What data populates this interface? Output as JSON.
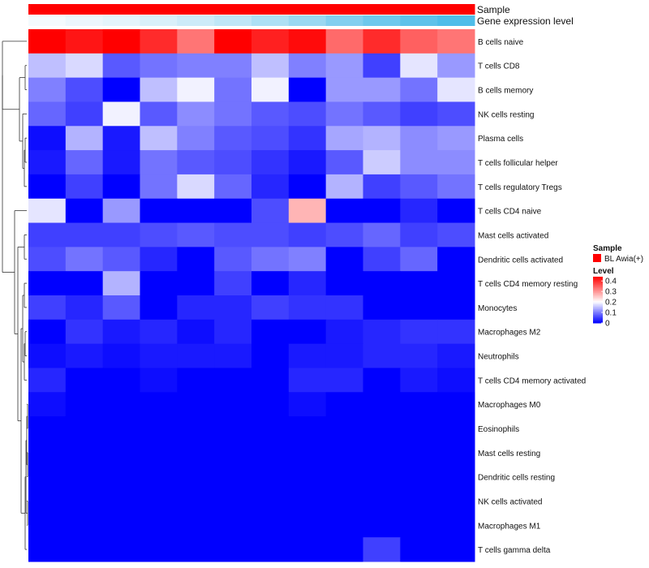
{
  "chart_data": {
    "type": "heatmap",
    "row_labels": [
      "B cells naive",
      "T cells CD8",
      "B cells memory",
      "NK cells resting",
      "Plasma cells",
      "T cells follicular helper",
      "T cells regulatory  Tregs",
      "T cells CD4 naive",
      "Mast cells activated",
      "Dendritic cells activated",
      "T cells CD4 memory resting",
      "Monocytes",
      "Macrophages M2",
      "Neutrophils",
      "T cells CD4 memory activated",
      "Macrophages M0",
      "Eosinophils",
      "Mast cells resting",
      "Dendritic cells resting",
      "NK cells activated",
      "Macrophages M1",
      "T cells gamma delta"
    ],
    "values": [
      [
        0.44,
        0.42,
        0.44,
        0.4,
        0.33,
        0.44,
        0.41,
        0.43,
        0.34,
        0.4,
        0.35,
        0.33
      ],
      [
        0.15,
        0.17,
        0.07,
        0.09,
        0.1,
        0.1,
        0.15,
        0.1,
        0.12,
        0.05,
        0.18,
        0.12
      ],
      [
        0.1,
        0.06,
        0.0,
        0.15,
        0.19,
        0.09,
        0.19,
        0.0,
        0.12,
        0.12,
        0.09,
        0.18
      ],
      [
        0.08,
        0.05,
        0.19,
        0.07,
        0.11,
        0.09,
        0.07,
        0.06,
        0.09,
        0.07,
        0.05,
        0.06
      ],
      [
        0.01,
        0.14,
        0.02,
        0.15,
        0.1,
        0.07,
        0.06,
        0.04,
        0.13,
        0.14,
        0.11,
        0.12
      ],
      [
        0.02,
        0.08,
        0.02,
        0.09,
        0.07,
        0.06,
        0.04,
        0.02,
        0.07,
        0.16,
        0.11,
        0.11
      ],
      [
        0.0,
        0.05,
        0.0,
        0.09,
        0.17,
        0.08,
        0.03,
        0.0,
        0.14,
        0.05,
        0.07,
        0.09
      ],
      [
        0.18,
        0.0,
        0.12,
        0.0,
        0.0,
        0.0,
        0.06,
        0.27,
        0.0,
        0.0,
        0.03,
        0.0
      ],
      [
        0.05,
        0.05,
        0.05,
        0.06,
        0.07,
        0.06,
        0.06,
        0.05,
        0.06,
        0.08,
        0.05,
        0.06
      ],
      [
        0.06,
        0.09,
        0.07,
        0.03,
        0.0,
        0.07,
        0.09,
        0.1,
        0.0,
        0.05,
        0.08,
        0.0
      ],
      [
        0.0,
        0.0,
        0.14,
        0.0,
        0.0,
        0.05,
        0.0,
        0.03,
        0.0,
        0.0,
        0.0,
        0.0
      ],
      [
        0.05,
        0.03,
        0.07,
        0.0,
        0.03,
        0.03,
        0.05,
        0.04,
        0.04,
        0.0,
        0.0,
        0.0
      ],
      [
        0.0,
        0.04,
        0.02,
        0.03,
        0.01,
        0.03,
        0.0,
        0.0,
        0.02,
        0.03,
        0.04,
        0.04
      ],
      [
        0.01,
        0.02,
        0.01,
        0.02,
        0.02,
        0.02,
        0.0,
        0.02,
        0.02,
        0.03,
        0.03,
        0.02
      ],
      [
        0.03,
        0.0,
        0.0,
        0.01,
        0.0,
        0.0,
        0.0,
        0.03,
        0.03,
        0.0,
        0.02,
        0.01
      ],
      [
        0.01,
        0.0,
        0.0,
        0.0,
        0.0,
        0.0,
        0.0,
        0.01,
        0.0,
        0.0,
        0.0,
        0.0
      ],
      [
        0.0,
        0.0,
        0.0,
        0.0,
        0.0,
        0.0,
        0.0,
        0.0,
        0.0,
        0.0,
        0.0,
        0.0
      ],
      [
        0.0,
        0.0,
        0.0,
        0.0,
        0.0,
        0.0,
        0.0,
        0.0,
        0.0,
        0.0,
        0.0,
        0.0
      ],
      [
        0.0,
        0.0,
        0.0,
        0.0,
        0.0,
        0.0,
        0.0,
        0.0,
        0.0,
        0.0,
        0.0,
        0.0
      ],
      [
        0.0,
        0.0,
        0.0,
        0.0,
        0.0,
        0.0,
        0.0,
        0.0,
        0.0,
        0.0,
        0.0,
        0.0
      ],
      [
        0.0,
        0.0,
        0.0,
        0.0,
        0.0,
        0.0,
        0.0,
        0.0,
        0.0,
        0.0,
        0.0,
        0.0
      ],
      [
        0.0,
        0.0,
        0.0,
        0.0,
        0.0,
        0.0,
        0.0,
        0.0,
        0.0,
        0.05,
        0.0,
        0.0
      ]
    ],
    "color_scale": {
      "min": 0,
      "max": 0.44,
      "stops": [
        {
          "value": 0,
          "color": "#0000ff"
        },
        {
          "value": 0.2,
          "color": "#ffffff"
        },
        {
          "value": 0.44,
          "color": "#ff0000"
        }
      ]
    },
    "annotations": [
      {
        "label": "Sample",
        "colors": [
          "#ff0000",
          "#ff0000",
          "#ff0000",
          "#ff0000",
          "#ff0000",
          "#ff0000",
          "#ff0000",
          "#ff0000",
          "#ff0000",
          "#ff0000",
          "#ff0000",
          "#ff0000"
        ]
      },
      {
        "label": "Gene expression level",
        "colors": [
          "#f4fafd",
          "#ecf6fc",
          "#e4f4fb",
          "#d9f0f9",
          "#cdebf8",
          "#bfe6f6",
          "#ade0f4",
          "#9ad8f1",
          "#82cfef",
          "#6ec8ec",
          "#5ec2ea",
          "#4fbde9"
        ]
      }
    ],
    "legend": {
      "sample_title": "Sample",
      "sample_entries": [
        {
          "label": "BL Awia(+)",
          "color": "#ff0000"
        }
      ],
      "level_title": "Level",
      "level_ticks": [
        "0.4",
        "0.3",
        "0.2",
        "0.1",
        "0"
      ],
      "level_tick_values": [
        0.4,
        0.3,
        0.2,
        0.1,
        0
      ]
    },
    "dendrogram_order": [
      1,
      2,
      3,
      4,
      5,
      6,
      7,
      8,
      9,
      10,
      11,
      12,
      13,
      14,
      15,
      16,
      17,
      18,
      19,
      20,
      21,
      22
    ]
  }
}
